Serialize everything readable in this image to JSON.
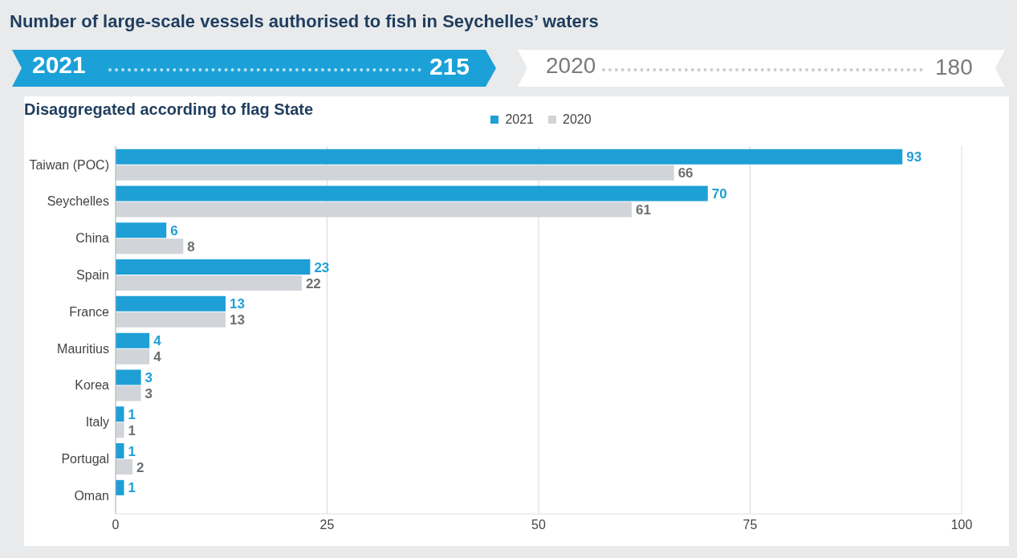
{
  "chart_data": {
    "type": "bar",
    "orientation": "horizontal",
    "title": "Number of large-scale vessels authorised to fish in Seychelles’ waters",
    "subtitle": "Disaggregated according to flag State",
    "annotations": [
      "2021",
      "215",
      "2020",
      "180"
    ],
    "categories": [
      "Taiwan (POC)",
      "Seychelles",
      "China",
      "Spain",
      "France",
      "Mauritius",
      "Korea",
      "Italy",
      "Portugal",
      "Oman"
    ],
    "series": [
      {
        "name": "2021",
        "color": "#1e9fd6",
        "values": [
          93,
          70,
          6,
          23,
          13,
          4,
          3,
          1,
          1,
          1
        ]
      },
      {
        "name": "2020",
        "color": "#d1d4d8",
        "values": [
          66,
          61,
          8,
          22,
          13,
          4,
          3,
          1,
          2,
          null
        ]
      }
    ],
    "xlim": [
      0,
      100
    ],
    "xticks": [
      0,
      25,
      50,
      75,
      100
    ],
    "grid": "x",
    "legend": "top",
    "data_labels": true
  }
}
